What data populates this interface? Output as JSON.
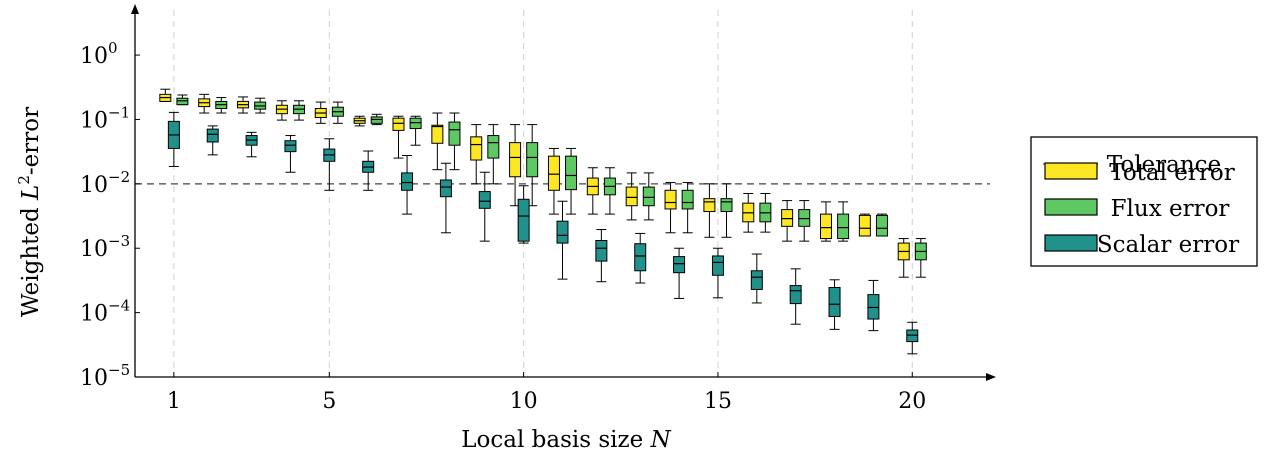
{
  "chart_data": {
    "type": "box",
    "xlabel": "Local basis size",
    "xlabel_var": "N",
    "ylabel": "Weighted",
    "ylabel_var": "L",
    "ylabel_exp": "2",
    "ylabel_suffix": "-error",
    "x_ticks": [
      1,
      5,
      10,
      15,
      20
    ],
    "y_ticks": [
      {
        "exp": -5,
        "label": "10",
        "sup": "−5"
      },
      {
        "exp": -4,
        "label": "10",
        "sup": "−4"
      },
      {
        "exp": -3,
        "label": "10",
        "sup": "−3"
      },
      {
        "exp": -2,
        "label": "10",
        "sup": "−2"
      },
      {
        "exp": -1,
        "label": "10",
        "sup": "−1"
      },
      {
        "exp": 0,
        "label": "10",
        "sup": "0"
      }
    ],
    "y_scale": "log",
    "ylim_log10": [
      -5,
      0.7
    ],
    "xlim": [
      0,
      22
    ],
    "grid": "x-dashed",
    "tolerance": 0.01,
    "legend_position": "right",
    "legend": [
      {
        "name": "Tolerance",
        "kind": "dashed-line"
      },
      {
        "name": "Total error",
        "kind": "box",
        "color": "#fde725"
      },
      {
        "name": "Flux error",
        "kind": "box",
        "color": "#5ec962"
      },
      {
        "name": "Scalar error",
        "kind": "box",
        "color": "#21918c"
      }
    ],
    "series": [
      {
        "name": "Total error",
        "color": "#fde725",
        "offset": -0.22,
        "boxes": [
          {
            "n": 1,
            "min": -0.72,
            "q1": -0.72,
            "med": -0.66,
            "q3": -0.61,
            "max": -0.53
          },
          {
            "n": 2,
            "min": -0.9,
            "q1": -0.8,
            "med": -0.74,
            "q3": -0.68,
            "max": -0.61
          },
          {
            "n": 3,
            "min": -0.9,
            "q1": -0.82,
            "med": -0.77,
            "q3": -0.72,
            "max": -0.65
          },
          {
            "n": 4,
            "min": -1.01,
            "q1": -0.91,
            "med": -0.84,
            "q3": -0.78,
            "max": -0.71
          },
          {
            "n": 5,
            "min": -1.06,
            "q1": -0.97,
            "med": -0.9,
            "q3": -0.83,
            "max": -0.73
          },
          {
            "n": 6,
            "min": -1.1,
            "q1": -1.06,
            "med": -1.02,
            "q3": -0.98,
            "max": -0.95
          },
          {
            "n": 7,
            "min": -1.6,
            "q1": -1.17,
            "med": -1.06,
            "q3": -0.98,
            "max": -0.95
          },
          {
            "n": 8,
            "min": -1.78,
            "q1": -1.37,
            "med": -1.11,
            "q3": -1.09,
            "max": -0.9
          },
          {
            "n": 9,
            "min": -2.0,
            "q1": -1.63,
            "med": -1.39,
            "q3": -1.27,
            "max": -1.08
          },
          {
            "n": 10,
            "min": -2.34,
            "q1": -1.89,
            "med": -1.59,
            "q3": -1.36,
            "max": -1.08
          },
          {
            "n": 11,
            "min": -2.47,
            "q1": -2.1,
            "med": -1.85,
            "q3": -1.57,
            "max": -1.45
          },
          {
            "n": 12,
            "min": -2.47,
            "q1": -2.17,
            "med": -2.04,
            "q3": -1.91,
            "max": -1.75
          },
          {
            "n": 13,
            "min": -2.56,
            "q1": -2.34,
            "med": -2.21,
            "q3": -2.05,
            "max": -1.83
          },
          {
            "n": 14,
            "min": -2.76,
            "q1": -2.39,
            "med": -2.29,
            "q3": -2.1,
            "max": -1.98
          },
          {
            "n": 15,
            "min": -2.83,
            "q1": -2.43,
            "med": -2.28,
            "q3": -2.23,
            "max": -2.0
          },
          {
            "n": 16,
            "min": -2.75,
            "q1": -2.59,
            "med": -2.45,
            "q3": -2.3,
            "max": -2.15
          },
          {
            "n": 17,
            "min": -2.89,
            "q1": -2.66,
            "med": -2.54,
            "q3": -2.4,
            "max": -2.26
          },
          {
            "n": 18,
            "min": -2.89,
            "q1": -2.85,
            "med": -2.68,
            "q3": -2.47,
            "max": -2.28
          },
          {
            "n": 19,
            "min": -2.81,
            "q1": -2.81,
            "med": -2.69,
            "q3": -2.49,
            "max": -2.47
          },
          {
            "n": 20,
            "min": -3.45,
            "q1": -3.18,
            "med": -3.05,
            "q3": -2.92,
            "max": -2.85
          }
        ]
      },
      {
        "name": "Flux error",
        "color": "#5ec962",
        "offset": 0.22,
        "boxes": [
          {
            "n": 1,
            "min": -0.77,
            "q1": -0.77,
            "med": -0.71,
            "q3": -0.67,
            "max": -0.62
          },
          {
            "n": 2,
            "min": -0.9,
            "q1": -0.83,
            "med": -0.77,
            "q3": -0.72,
            "max": -0.66
          },
          {
            "n": 3,
            "min": -0.9,
            "q1": -0.84,
            "med": -0.79,
            "q3": -0.73,
            "max": -0.67
          },
          {
            "n": 4,
            "min": -1.01,
            "q1": -0.91,
            "med": -0.84,
            "q3": -0.78,
            "max": -0.71
          },
          {
            "n": 5,
            "min": -1.06,
            "q1": -0.95,
            "med": -0.88,
            "q3": -0.81,
            "max": -0.73
          },
          {
            "n": 6,
            "min": -1.08,
            "q1": -1.06,
            "med": -1.0,
            "q3": -0.96,
            "max": -0.92
          },
          {
            "n": 7,
            "min": -1.4,
            "q1": -1.14,
            "med": -1.05,
            "q3": -0.98,
            "max": -0.95
          },
          {
            "n": 8,
            "min": -1.78,
            "q1": -1.4,
            "med": -1.16,
            "q3": -1.04,
            "max": -0.9
          },
          {
            "n": 9,
            "min": -2.0,
            "q1": -1.6,
            "med": -1.36,
            "q3": -1.25,
            "max": -1.08
          },
          {
            "n": 10,
            "min": -2.34,
            "q1": -1.89,
            "med": -1.59,
            "q3": -1.36,
            "max": -1.08
          },
          {
            "n": 11,
            "min": -2.47,
            "q1": -2.09,
            "med": -1.87,
            "q3": -1.57,
            "max": -1.45
          },
          {
            "n": 12,
            "min": -2.47,
            "q1": -2.17,
            "med": -2.04,
            "q3": -1.91,
            "max": -1.75
          },
          {
            "n": 13,
            "min": -2.56,
            "q1": -2.34,
            "med": -2.21,
            "q3": -2.05,
            "max": -1.83
          },
          {
            "n": 14,
            "min": -2.76,
            "q1": -2.39,
            "med": -2.29,
            "q3": -2.1,
            "max": -1.98
          },
          {
            "n": 15,
            "min": -2.83,
            "q1": -2.43,
            "med": -2.28,
            "q3": -2.23,
            "max": -2.0
          },
          {
            "n": 16,
            "min": -2.75,
            "q1": -2.59,
            "med": -2.45,
            "q3": -2.3,
            "max": -2.15
          },
          {
            "n": 17,
            "min": -2.89,
            "q1": -2.66,
            "med": -2.54,
            "q3": -2.4,
            "max": -2.26
          },
          {
            "n": 18,
            "min": -2.89,
            "q1": -2.85,
            "med": -2.68,
            "q3": -2.47,
            "max": -2.28
          },
          {
            "n": 19,
            "min": -2.81,
            "q1": -2.81,
            "med": -2.69,
            "q3": -2.49,
            "max": -2.47
          },
          {
            "n": 20,
            "min": -3.45,
            "q1": -3.18,
            "med": -3.05,
            "q3": -2.92,
            "max": -2.85
          }
        ]
      },
      {
        "name": "Scalar error",
        "color": "#21918c",
        "offset": 0,
        "boxes": [
          {
            "n": 1,
            "min": -1.73,
            "q1": -1.45,
            "med": -1.24,
            "q3": -1.03,
            "max": -0.89
          },
          {
            "n": 2,
            "min": -1.55,
            "q1": -1.35,
            "med": -1.23,
            "q3": -1.15,
            "max": -1.1
          },
          {
            "n": 3,
            "min": -1.58,
            "q1": -1.4,
            "med": -1.32,
            "q3": -1.25,
            "max": -1.2
          },
          {
            "n": 4,
            "min": -1.82,
            "q1": -1.5,
            "med": -1.4,
            "q3": -1.33,
            "max": -1.25
          },
          {
            "n": 5,
            "min": -2.1,
            "q1": -1.65,
            "med": -1.55,
            "q3": -1.46,
            "max": -1.3
          },
          {
            "n": 6,
            "min": -2.1,
            "q1": -1.82,
            "med": -1.74,
            "q3": -1.65,
            "max": -1.49
          },
          {
            "n": 7,
            "min": -2.47,
            "q1": -2.1,
            "med": -1.98,
            "q3": -1.83,
            "max": -1.56
          },
          {
            "n": 8,
            "min": -2.76,
            "q1": -2.2,
            "med": -2.05,
            "q3": -1.94,
            "max": -1.68
          },
          {
            "n": 9,
            "min": -2.89,
            "q1": -2.38,
            "med": -2.27,
            "q3": -2.12,
            "max": -1.82
          },
          {
            "n": 10,
            "min": -2.92,
            "q1": -2.89,
            "med": -2.5,
            "q3": -2.24,
            "max": -2.03
          },
          {
            "n": 11,
            "min": -3.48,
            "q1": -2.92,
            "med": -2.8,
            "q3": -2.58,
            "max": -2.27
          },
          {
            "n": 12,
            "min": -3.52,
            "q1": -3.2,
            "med": -3.0,
            "q3": -2.88,
            "max": -2.71
          },
          {
            "n": 13,
            "min": -3.54,
            "q1": -3.35,
            "med": -3.12,
            "q3": -2.93,
            "max": -2.77
          },
          {
            "n": 14,
            "min": -3.78,
            "q1": -3.38,
            "med": -3.24,
            "q3": -3.13,
            "max": -3.0
          },
          {
            "n": 15,
            "min": -3.77,
            "q1": -3.42,
            "med": -3.22,
            "q3": -3.12,
            "max": -3.0
          },
          {
            "n": 16,
            "min": -3.85,
            "q1": -3.64,
            "med": -3.45,
            "q3": -3.35,
            "max": -3.09
          },
          {
            "n": 17,
            "min": -4.18,
            "q1": -3.86,
            "med": -3.66,
            "q3": -3.58,
            "max": -3.32
          },
          {
            "n": 18,
            "min": -4.26,
            "q1": -4.06,
            "med": -3.87,
            "q3": -3.61,
            "max": -3.49
          },
          {
            "n": 19,
            "min": -4.28,
            "q1": -4.1,
            "med": -3.92,
            "q3": -3.72,
            "max": -3.5
          },
          {
            "n": 20,
            "min": -4.64,
            "q1": -4.45,
            "med": -4.35,
            "q3": -4.27,
            "max": -4.15
          }
        ]
      }
    ]
  }
}
